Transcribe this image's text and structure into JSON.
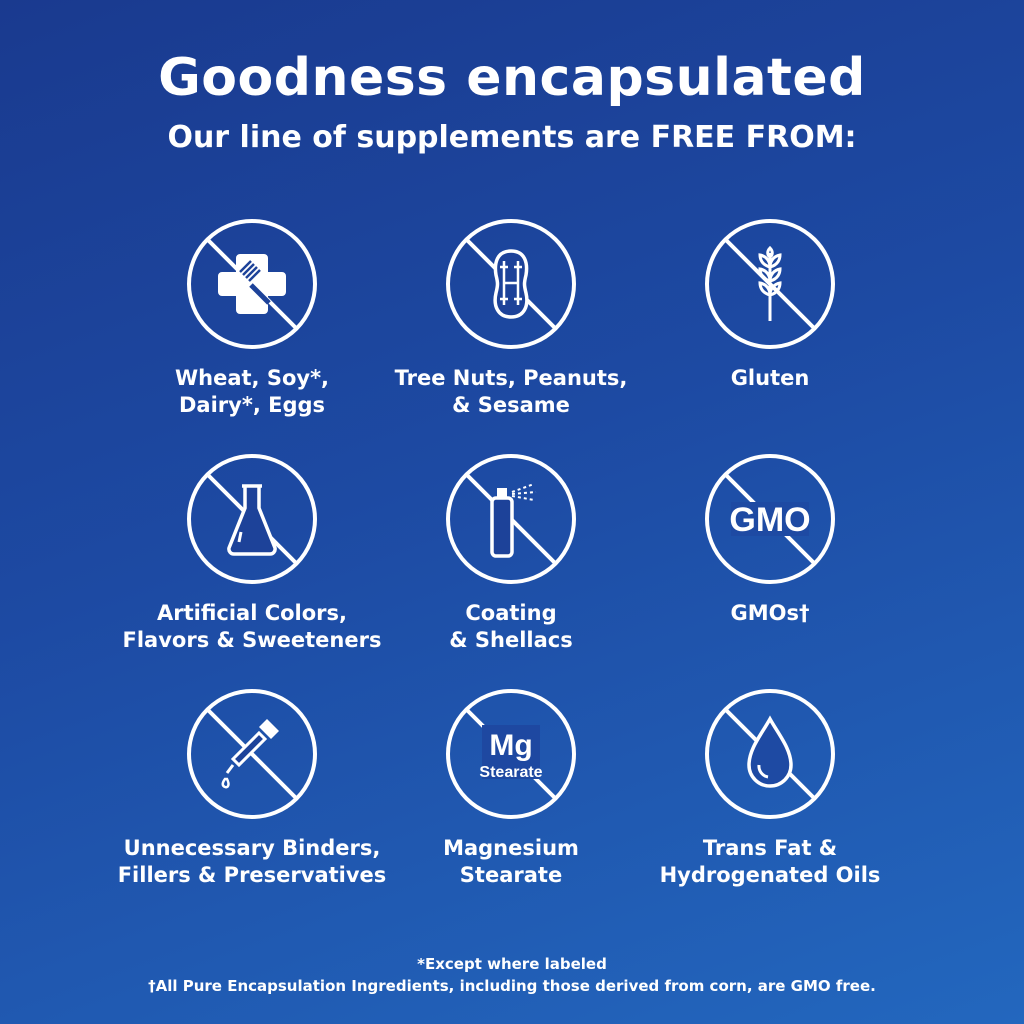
{
  "title": "Goodness encapsulated",
  "subtitle": "Our line of supplements are FREE FROM:",
  "items": [
    {
      "icon": "allergen-cross-fork-icon",
      "line1": "Wheat, Soy*,",
      "line2": "Dairy*, Eggs"
    },
    {
      "icon": "peanut-icon",
      "line1": "Tree Nuts, Peanuts,",
      "line2": "& Sesame"
    },
    {
      "icon": "wheat-icon",
      "line1": "Gluten",
      "line2": ""
    },
    {
      "icon": "flask-icon",
      "line1": "Artificial Colors,",
      "line2": "Flavors & Sweeteners"
    },
    {
      "icon": "spray-can-icon",
      "line1": "Coating",
      "line2": "& Shellacs"
    },
    {
      "icon": "gmo-icon",
      "icon_text": "GMO",
      "line1": "GMOs†",
      "line2": ""
    },
    {
      "icon": "dropper-icon",
      "line1": "Unnecessary Binders,",
      "line2": "Fillers & Preservatives"
    },
    {
      "icon": "mg-stearate-icon",
      "icon_text": "Mg",
      "icon_subtext": "Stearate",
      "line1": "Magnesium",
      "line2": "Stearate"
    },
    {
      "icon": "oil-drop-icon",
      "line1": "Trans Fat &",
      "line2": "Hydrogenated Oils"
    }
  ],
  "footnotes": {
    "asterisk": "*Except where labeled",
    "dagger": "†All Pure Encapsulation Ingredients, including those derived from corn, are GMO free."
  },
  "colors": {
    "background_start": "#1a3a8f",
    "background_end": "#2367be",
    "foreground": "#ffffff"
  }
}
